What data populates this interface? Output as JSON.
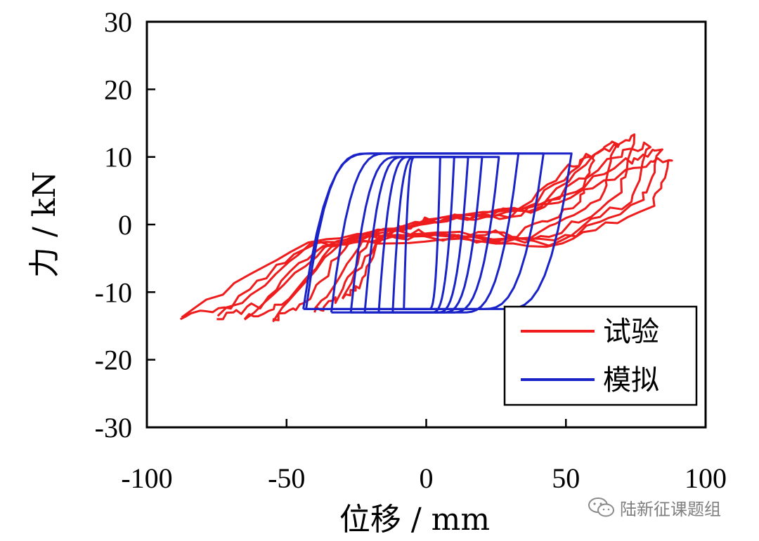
{
  "chart_data": {
    "type": "line",
    "title": "",
    "xlabel": "位移 / mm",
    "ylabel": "力 / kN",
    "xlim": [
      -100,
      100
    ],
    "ylim": [
      -30,
      30
    ],
    "x_ticks": [
      -100,
      -50,
      0,
      50,
      100
    ],
    "x_tick_labels": [
      "-100",
      "-50",
      "0",
      "50",
      "100"
    ],
    "y_ticks": [
      -30,
      -20,
      -10,
      0,
      10,
      20,
      30
    ],
    "y_tick_labels": [
      "-30",
      "-20",
      "-10",
      "0",
      "10",
      "20",
      "30"
    ],
    "grid": false,
    "legend_position": "bottom-right",
    "colors": {
      "experiment": "#ee1c1c",
      "simulation": "#1a23c8"
    },
    "series": [
      {
        "name": "试验",
        "color": "#ee1c1c",
        "loops": [
          {
            "amplitude_pos": 60,
            "amplitude_neg": -30,
            "peak_pos": 10,
            "peak_neg": -11,
            "residual": 1.5
          },
          {
            "amplitude_pos": 68,
            "amplitude_neg": -40,
            "peak_pos": 12,
            "peak_neg": -13,
            "residual": 2.0
          },
          {
            "amplitude_pos": 75,
            "amplitude_neg": -55,
            "peak_pos": 13,
            "peak_neg": -14,
            "residual": 2.5
          },
          {
            "amplitude_pos": 80,
            "amplitude_neg": -65,
            "peak_pos": 12,
            "peak_neg": -14,
            "residual": 3.0
          },
          {
            "amplitude_pos": 84,
            "amplitude_neg": -75,
            "peak_pos": 11,
            "peak_neg": -14,
            "residual": 3.0
          },
          {
            "amplitude_pos": 88,
            "amplitude_neg": -88,
            "peak_pos": 10,
            "peak_neg": -14,
            "residual": 3.5
          }
        ]
      },
      {
        "name": "模拟",
        "color": "#1a23c8",
        "loops": [
          {
            "amplitude_pos": 5,
            "amplitude_neg": -8,
            "peak_pos": 10,
            "peak_neg": -12.5,
            "width": 4
          },
          {
            "amplitude_pos": 10,
            "amplitude_neg": -12,
            "peak_pos": 10,
            "peak_neg": -13,
            "width": 8
          },
          {
            "amplitude_pos": 15,
            "amplitude_neg": -17,
            "peak_pos": 10,
            "peak_neg": -13,
            "width": 11
          },
          {
            "amplitude_pos": 20,
            "amplitude_neg": -22,
            "peak_pos": 10,
            "peak_neg": -13,
            "width": 14
          },
          {
            "amplitude_pos": 26,
            "amplitude_neg": -27,
            "peak_pos": 10,
            "peak_neg": -13,
            "width": 17
          },
          {
            "amplitude_pos": 33,
            "amplitude_neg": -34,
            "peak_pos": 10.5,
            "peak_neg": -13,
            "width": 20
          },
          {
            "amplitude_pos": 42,
            "amplitude_neg": -43,
            "peak_pos": 10.5,
            "peak_neg": -12.5,
            "width": 22
          },
          {
            "amplitude_pos": 52,
            "amplitude_neg": -44,
            "peak_pos": 10.5,
            "peak_neg": -12.5,
            "width": 24
          }
        ]
      }
    ]
  },
  "watermark": {
    "text": "陆新征课题组",
    "icon": "wechat-icon"
  }
}
